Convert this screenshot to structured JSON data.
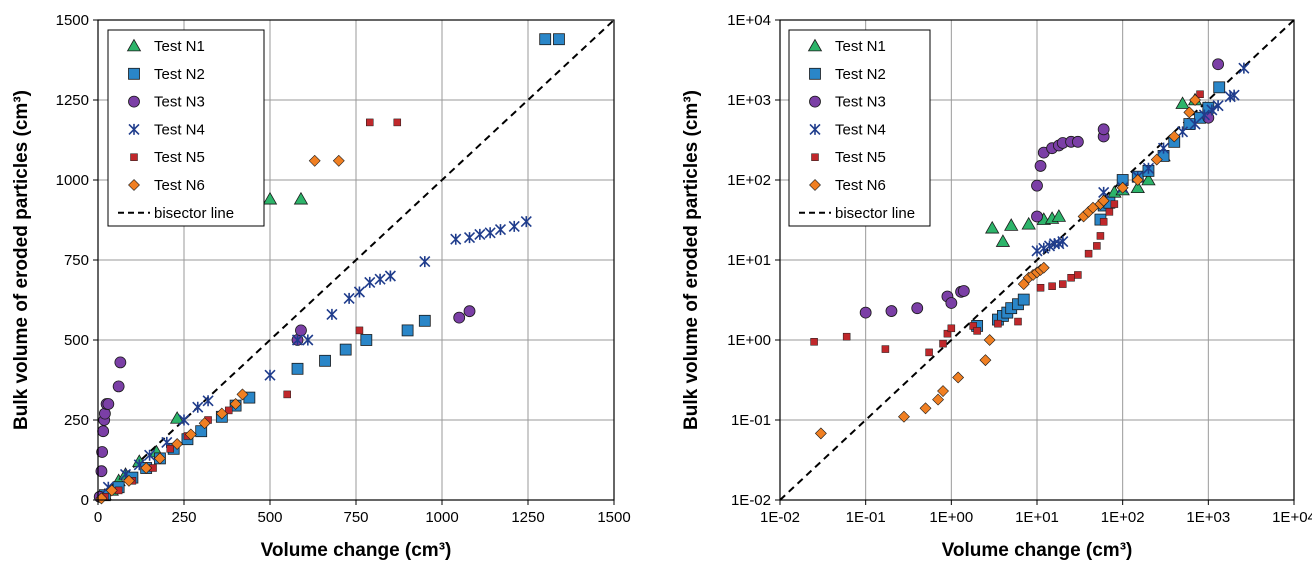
{
  "chart_data": [
    {
      "type": "scatter",
      "xlabel": "Volume change (cm³)",
      "ylabel": "Bulk volume of eroded particles (cm³)",
      "xlim": [
        0,
        1500
      ],
      "ylim": [
        0,
        1500
      ],
      "x_ticks": [
        "0",
        "250",
        "500",
        "750",
        "1000",
        "1250",
        "1500"
      ],
      "y_ticks": [
        "0",
        "250",
        "500",
        "750",
        "1000",
        "1250",
        "1500"
      ],
      "scale": "linear",
      "grid": true,
      "legend_position": "top-left",
      "series": [
        {
          "name": "Test N1",
          "marker": "triangle",
          "color": "#2db46a",
          "points": [
            [
              20,
              15
            ],
            [
              40,
              30
            ],
            [
              60,
              60
            ],
            [
              80,
              80
            ],
            [
              120,
              120
            ],
            [
              170,
              150
            ],
            [
              230,
              255
            ],
            [
              500,
              940
            ],
            [
              590,
              940
            ]
          ]
        },
        {
          "name": "Test N2",
          "marker": "square",
          "color": "#2a86c8",
          "points": [
            [
              20,
              15
            ],
            [
              60,
              40
            ],
            [
              100,
              70
            ],
            [
              140,
              100
            ],
            [
              180,
              130
            ],
            [
              220,
              160
            ],
            [
              260,
              190
            ],
            [
              300,
              215
            ],
            [
              360,
              260
            ],
            [
              400,
              295
            ],
            [
              440,
              320
            ],
            [
              580,
              410
            ],
            [
              660,
              435
            ],
            [
              720,
              470
            ],
            [
              780,
              500
            ],
            [
              900,
              530
            ],
            [
              950,
              560
            ],
            [
              1300,
              1440
            ],
            [
              1340,
              1440
            ]
          ]
        },
        {
          "name": "Test N3",
          "marker": "circle",
          "color": "#7b3fa6",
          "points": [
            [
              5,
              10
            ],
            [
              10,
              90
            ],
            [
              12,
              150
            ],
            [
              15,
              215
            ],
            [
              18,
              250
            ],
            [
              20,
              270
            ],
            [
              25,
              300
            ],
            [
              30,
              300
            ],
            [
              60,
              355
            ],
            [
              65,
              430
            ],
            [
              580,
              500
            ],
            [
              590,
              530
            ],
            [
              1050,
              570
            ],
            [
              1080,
              590
            ]
          ]
        },
        {
          "name": "Test N4",
          "marker": "cross",
          "color": "#1f3c8c",
          "points": [
            [
              30,
              40
            ],
            [
              80,
              80
            ],
            [
              120,
              110
            ],
            [
              150,
              140
            ],
            [
              200,
              180
            ],
            [
              250,
              250
            ],
            [
              290,
              290
            ],
            [
              320,
              310
            ],
            [
              500,
              390
            ],
            [
              580,
              500
            ],
            [
              610,
              500
            ],
            [
              680,
              580
            ],
            [
              730,
              630
            ],
            [
              760,
              650
            ],
            [
              790,
              680
            ],
            [
              820,
              690
            ],
            [
              850,
              700
            ],
            [
              950,
              745
            ],
            [
              1040,
              815
            ],
            [
              1080,
              820
            ],
            [
              1110,
              830
            ],
            [
              1140,
              835
            ],
            [
              1170,
              845
            ],
            [
              1210,
              855
            ],
            [
              1245,
              870
            ]
          ]
        },
        {
          "name": "Test N5",
          "marker": "square-small",
          "color": "#c0282b",
          "points": [
            [
              20,
              10
            ],
            [
              60,
              30
            ],
            [
              100,
              60
            ],
            [
              160,
              100
            ],
            [
              210,
              160
            ],
            [
              260,
              200
            ],
            [
              320,
              250
            ],
            [
              380,
              280
            ],
            [
              550,
              330
            ],
            [
              760,
              530
            ],
            [
              790,
              1180
            ],
            [
              870,
              1180
            ]
          ]
        },
        {
          "name": "Test N6",
          "marker": "diamond",
          "color": "#f07f22",
          "points": [
            [
              10,
              5
            ],
            [
              40,
              30
            ],
            [
              90,
              60
            ],
            [
              140,
              100
            ],
            [
              180,
              130
            ],
            [
              230,
              175
            ],
            [
              270,
              205
            ],
            [
              310,
              240
            ],
            [
              360,
              270
            ],
            [
              400,
              300
            ],
            [
              420,
              330
            ],
            [
              630,
              1060
            ],
            [
              700,
              1060
            ]
          ]
        }
      ],
      "reference_line": {
        "name": "bisector line",
        "style": "dashed",
        "from": [
          0,
          0
        ],
        "to": [
          1500,
          1500
        ]
      }
    },
    {
      "type": "scatter",
      "xlabel": "Volume change (cm³)",
      "ylabel": "Bulk volume of eroded particles (cm³)",
      "xlim": [
        0.01,
        10000
      ],
      "ylim": [
        0.01,
        10000
      ],
      "x_ticks": [
        "1E-02",
        "1E-01",
        "1E+00",
        "1E+01",
        "1E+02",
        "1E+03",
        "1E+04"
      ],
      "y_ticks": [
        "1E-02",
        "1E-01",
        "1E+00",
        "1E+01",
        "1E+02",
        "1E+03",
        "1E+04"
      ],
      "scale": "log",
      "grid": true,
      "legend_position": "top-left",
      "series": [
        {
          "name": "Test N1",
          "marker": "triangle",
          "color": "#2db46a",
          "points": [
            [
              3,
              25
            ],
            [
              4,
              17
            ],
            [
              5,
              27
            ],
            [
              8,
              28
            ],
            [
              12,
              32
            ],
            [
              15,
              33
            ],
            [
              18,
              35
            ],
            [
              60,
              55
            ],
            [
              80,
              70
            ],
            [
              100,
              75
            ],
            [
              150,
              80
            ],
            [
              200,
              100
            ],
            [
              300,
              200
            ],
            [
              500,
              900
            ],
            [
              700,
              1000
            ]
          ]
        },
        {
          "name": "Test N2",
          "marker": "square",
          "color": "#2a86c8",
          "points": [
            [
              2,
              1.5
            ],
            [
              3.5,
              1.8
            ],
            [
              4,
              2
            ],
            [
              4.5,
              2.2
            ],
            [
              5,
              2.5
            ],
            [
              6,
              2.8
            ],
            [
              7,
              3.2
            ],
            [
              55,
              32
            ],
            [
              60,
              48
            ],
            [
              70,
              52
            ],
            [
              100,
              100
            ],
            [
              150,
              110
            ],
            [
              200,
              130
            ],
            [
              300,
              200
            ],
            [
              400,
              300
            ],
            [
              600,
              500
            ],
            [
              800,
              600
            ],
            [
              1000,
              800
            ],
            [
              1340,
              1440
            ]
          ]
        },
        {
          "name": "Test N3",
          "marker": "circle",
          "color": "#7b3fa6",
          "points": [
            [
              0.1,
              2.2
            ],
            [
              0.2,
              2.3
            ],
            [
              0.4,
              2.5
            ],
            [
              0.9,
              3.5
            ],
            [
              1,
              2.9
            ],
            [
              1.3,
              4
            ],
            [
              1.4,
              4.1
            ],
            [
              10,
              35
            ],
            [
              10,
              85
            ],
            [
              11,
              150
            ],
            [
              12,
              220
            ],
            [
              15,
              250
            ],
            [
              18,
              270
            ],
            [
              20,
              290
            ],
            [
              25,
              300
            ],
            [
              30,
              300
            ],
            [
              60,
              350
            ],
            [
              60,
              430
            ],
            [
              1000,
              600
            ],
            [
              1300,
              2800
            ]
          ]
        },
        {
          "name": "Test N4",
          "marker": "cross",
          "color": "#1f3c8c",
          "points": [
            [
              10,
              13
            ],
            [
              12,
              14
            ],
            [
              14,
              15
            ],
            [
              16,
              16
            ],
            [
              18,
              16
            ],
            [
              20,
              17
            ],
            [
              60,
              70
            ],
            [
              100,
              80
            ],
            [
              150,
              110
            ],
            [
              200,
              140
            ],
            [
              300,
              250
            ],
            [
              500,
              400
            ],
            [
              700,
              500
            ],
            [
              900,
              650
            ],
            [
              1100,
              750
            ],
            [
              1300,
              850
            ],
            [
              1800,
              1100
            ],
            [
              2000,
              1150
            ],
            [
              2600,
              2500
            ]
          ]
        },
        {
          "name": "Test N5",
          "marker": "square-small",
          "color": "#c0282b",
          "points": [
            [
              0.025,
              0.95
            ],
            [
              0.06,
              1.1
            ],
            [
              0.17,
              0.77
            ],
            [
              0.55,
              0.7
            ],
            [
              0.8,
              0.9
            ],
            [
              0.9,
              1.2
            ],
            [
              1,
              1.4
            ],
            [
              1.8,
              1.5
            ],
            [
              2,
              1.3
            ],
            [
              3.5,
              1.6
            ],
            [
              6,
              1.7
            ],
            [
              11,
              4.5
            ],
            [
              15,
              4.7
            ],
            [
              20,
              5
            ],
            [
              25,
              6
            ],
            [
              30,
              6.5
            ],
            [
              40,
              12
            ],
            [
              50,
              15
            ],
            [
              55,
              20
            ],
            [
              60,
              30
            ],
            [
              70,
              40
            ],
            [
              80,
              50
            ],
            [
              800,
              1180
            ]
          ]
        },
        {
          "name": "Test N6",
          "marker": "diamond",
          "color": "#f07f22",
          "points": [
            [
              0.03,
              0.068
            ],
            [
              0.28,
              0.11
            ],
            [
              0.5,
              0.14
            ],
            [
              0.7,
              0.18
            ],
            [
              0.8,
              0.23
            ],
            [
              1.2,
              0.34
            ],
            [
              2.5,
              0.56
            ],
            [
              2.8,
              1
            ],
            [
              7,
              5
            ],
            [
              8,
              6
            ],
            [
              9,
              6.5
            ],
            [
              10,
              7
            ],
            [
              11,
              7.5
            ],
            [
              12,
              8
            ],
            [
              35,
              35
            ],
            [
              40,
              40
            ],
            [
              45,
              45
            ],
            [
              55,
              50
            ],
            [
              60,
              55
            ],
            [
              100,
              80
            ],
            [
              150,
              100
            ],
            [
              250,
              180
            ],
            [
              400,
              350
            ],
            [
              600,
              700
            ],
            [
              700,
              1000
            ]
          ]
        }
      ],
      "reference_line": {
        "name": "bisector line",
        "style": "dashed",
        "from": [
          0.01,
          0.01
        ],
        "to": [
          10000,
          10000
        ]
      }
    }
  ]
}
